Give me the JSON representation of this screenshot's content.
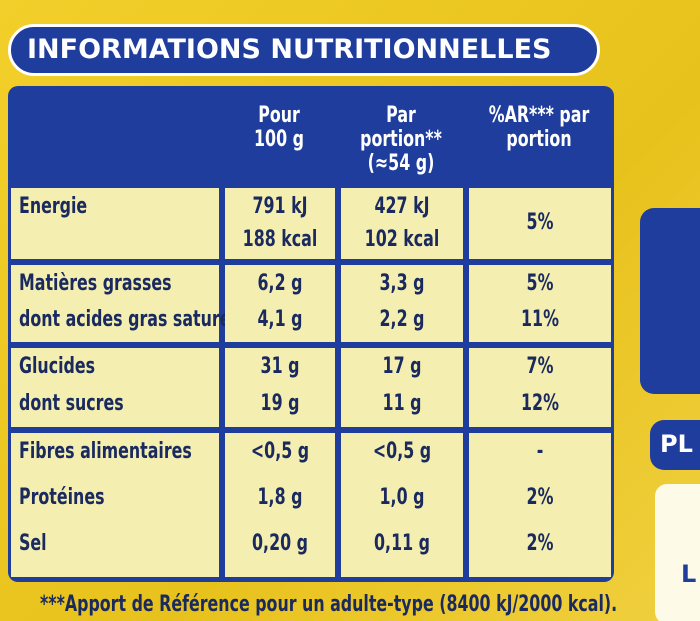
{
  "header": {
    "title": "INFORMATIONS NUTRITIONNELLES"
  },
  "table": {
    "columns": [
      "Pour 100 g",
      "Par portion** (≈54 g)",
      "%AR*** par portion"
    ],
    "groups": [
      {
        "labels": [
          "Energie"
        ],
        "per_100g": [
          "791 kJ",
          "188 kcal"
        ],
        "per_portion": [
          "427 kJ",
          "102 kcal"
        ],
        "ar": [
          "5%"
        ]
      },
      {
        "labels": [
          "Matières grasses",
          "dont acides gras saturés"
        ],
        "per_100g": [
          "6,2 g",
          "4,1 g"
        ],
        "per_portion": [
          "3,3 g",
          "2,2 g"
        ],
        "ar": [
          "5%",
          "11%"
        ]
      },
      {
        "labels": [
          "Glucides",
          "dont sucres"
        ],
        "per_100g": [
          "31 g",
          "19 g"
        ],
        "per_portion": [
          "17 g",
          "11 g"
        ],
        "ar": [
          "7%",
          "12%"
        ]
      },
      {
        "labels": [
          "Fibres alimentaires",
          "Protéines",
          "Sel"
        ],
        "per_100g": [
          "<0,5 g",
          "1,8 g",
          "0,20 g"
        ],
        "per_portion": [
          "<0,5 g",
          "1,0 g",
          "0,11 g"
        ],
        "ar": [
          "-",
          "2%",
          "2%"
        ]
      }
    ]
  },
  "footnote": "***Apport de Référence pour un adulte-type (8400 kJ/2000 kcal).",
  "side": {
    "labels": [
      "PL",
      "L"
    ]
  }
}
